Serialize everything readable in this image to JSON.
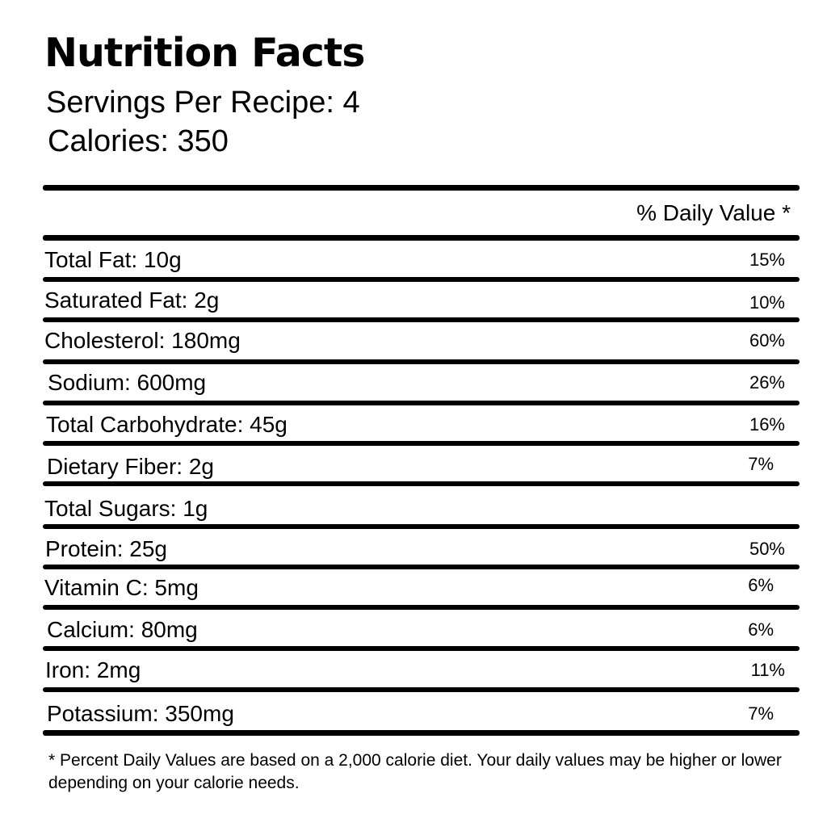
{
  "label": {
    "title": "Nutrition Facts",
    "servings": "Servings Per Recipe: 4",
    "calories": "Calories: 350",
    "daily_value_header": "% Daily Value *"
  },
  "nutrients": [
    {
      "name": "Total Fat: 10g",
      "dv": "15%"
    },
    {
      "name": "Saturated Fat: 2g",
      "dv": "10%"
    },
    {
      "name": "Cholesterol: 180mg",
      "dv": "60%"
    },
    {
      "name": "Sodium: 600mg",
      "dv": "26%"
    },
    {
      "name": "Total Carbohydrate: 45g",
      "dv": "16%"
    },
    {
      "name": "Dietary Fiber: 2g",
      "dv": "7%"
    },
    {
      "name": "Total Sugars: 1g",
      "dv": ""
    },
    {
      "name": "Protein: 25g",
      "dv": "50%"
    },
    {
      "name": "Vitamin C: 5mg",
      "dv": "6%"
    },
    {
      "name": "Calcium: 80mg",
      "dv": "6%"
    },
    {
      "name": "Iron: 2mg",
      "dv": "11%"
    },
    {
      "name": "Potassium: 350mg",
      "dv": "7%"
    }
  ],
  "footnote": "* Percent Daily Values are based on a 2,000 calorie diet. Your daily values may be higher or lower depending on your calorie needs."
}
